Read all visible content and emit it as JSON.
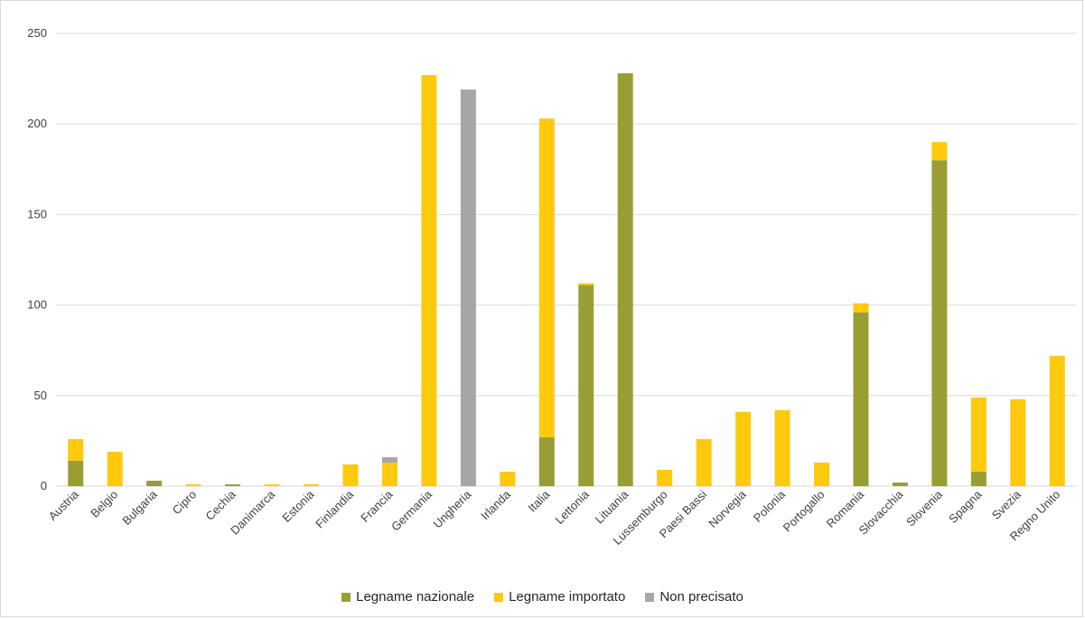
{
  "chart_data": {
    "type": "bar",
    "stacked": true,
    "categories": [
      "Austria",
      "Belgio",
      "Bulgaria",
      "Cipro",
      "Cechia",
      "Danimarca",
      "Estonia",
      "Finlandia",
      "Francia",
      "Germania",
      "Ungheria",
      "Irlanda",
      "Italia",
      "Lettonia",
      "Lituania",
      "Lussemburgo",
      "Paesi Bassi",
      "Norvegia",
      "Polonia",
      "Portogallo",
      "Romania",
      "Slovacchia",
      "Slovenia",
      "Spagna",
      "Svezia",
      "Regno Unito"
    ],
    "series": [
      {
        "name": "Legname nazionale",
        "color": "#9a9d34",
        "values": [
          14,
          0,
          3,
          0,
          1,
          0,
          0,
          0,
          0,
          0,
          0,
          0,
          27,
          111,
          228,
          0,
          0,
          0,
          0,
          0,
          96,
          2,
          180,
          8,
          0,
          0
        ]
      },
      {
        "name": "Legname importato",
        "color": "#ffc90e",
        "values": [
          12,
          19,
          0,
          1,
          0,
          1,
          1,
          12,
          13,
          227,
          0,
          8,
          176,
          1,
          0,
          9,
          26,
          41,
          42,
          13,
          5,
          0,
          10,
          41,
          48,
          72
        ]
      },
      {
        "name": "Non precisato",
        "color": "#a6a6a6",
        "values": [
          0,
          0,
          0,
          0,
          0,
          0,
          0,
          0,
          3,
          0,
          219,
          0,
          0,
          0,
          0,
          0,
          0,
          0,
          0,
          0,
          0,
          0,
          0,
          0,
          0,
          0
        ]
      }
    ],
    "ylim": [
      0,
      250
    ],
    "yticks": [
      0,
      50,
      100,
      150,
      200,
      250
    ],
    "grid": true,
    "legend_position": "bottom"
  }
}
